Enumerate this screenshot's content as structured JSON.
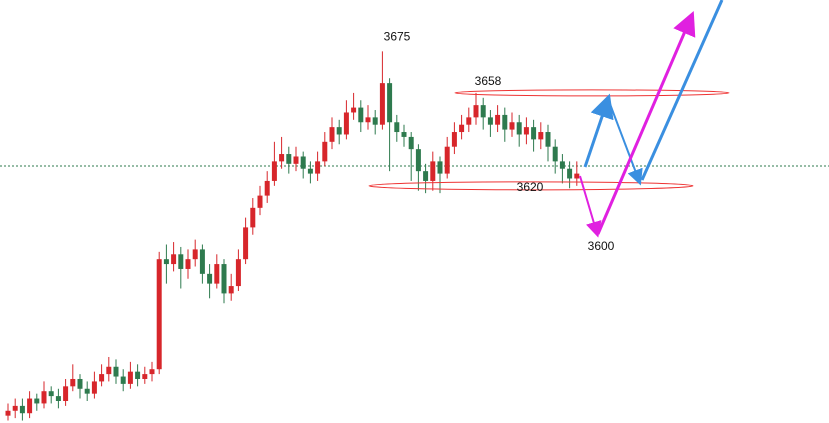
{
  "chart_data": {
    "type": "candlestick",
    "ohlc": [
      [
        3526,
        3531,
        3524,
        3528
      ],
      [
        3528,
        3533,
        3525,
        3530
      ],
      [
        3530,
        3533,
        3524,
        3527
      ],
      [
        3527,
        3536,
        3525,
        3533
      ],
      [
        3533,
        3535,
        3528,
        3531
      ],
      [
        3531,
        3540,
        3529,
        3536
      ],
      [
        3536,
        3538,
        3531,
        3534
      ],
      [
        3534,
        3537,
        3529,
        3532
      ],
      [
        3532,
        3541,
        3530,
        3538
      ],
      [
        3538,
        3547,
        3536,
        3541
      ],
      [
        3541,
        3543,
        3533,
        3537
      ],
      [
        3537,
        3540,
        3532,
        3535
      ],
      [
        3535,
        3544,
        3533,
        3540
      ],
      [
        3540,
        3547,
        3538,
        3543
      ],
      [
        3543,
        3550,
        3540,
        3546
      ],
      [
        3546,
        3549,
        3539,
        3542
      ],
      [
        3542,
        3545,
        3536,
        3539
      ],
      [
        3539,
        3548,
        3537,
        3544
      ],
      [
        3544,
        3547,
        3538,
        3541
      ],
      [
        3541,
        3546,
        3539,
        3543
      ],
      [
        3543,
        3548,
        3540,
        3545
      ],
      [
        3545,
        3593,
        3543,
        3590
      ],
      [
        3590,
        3596,
        3580,
        3588
      ],
      [
        3588,
        3597,
        3585,
        3592
      ],
      [
        3592,
        3595,
        3578,
        3586
      ],
      [
        3586,
        3594,
        3582,
        3590
      ],
      [
        3590,
        3598,
        3587,
        3594
      ],
      [
        3594,
        3596,
        3580,
        3584
      ],
      [
        3584,
        3588,
        3574,
        3580
      ],
      [
        3580,
        3592,
        3578,
        3588
      ],
      [
        3588,
        3590,
        3572,
        3576
      ],
      [
        3576,
        3584,
        3573,
        3579
      ],
      [
        3579,
        3594,
        3577,
        3590
      ],
      [
        3590,
        3607,
        3588,
        3603
      ],
      [
        3603,
        3615,
        3600,
        3611
      ],
      [
        3611,
        3620,
        3608,
        3616
      ],
      [
        3616,
        3626,
        3613,
        3622
      ],
      [
        3622,
        3638,
        3620,
        3630
      ],
      [
        3630,
        3640,
        3627,
        3633
      ],
      [
        3633,
        3636,
        3625,
        3629
      ],
      [
        3629,
        3636,
        3626,
        3632
      ],
      [
        3632,
        3634,
        3623,
        3627
      ],
      [
        3627,
        3630,
        3621,
        3625
      ],
      [
        3625,
        3634,
        3622,
        3630
      ],
      [
        3630,
        3642,
        3628,
        3638
      ],
      [
        3638,
        3648,
        3635,
        3644
      ],
      [
        3644,
        3647,
        3637,
        3641
      ],
      [
        3641,
        3655,
        3639,
        3650
      ],
      [
        3650,
        3658,
        3647,
        3652
      ],
      [
        3652,
        3655,
        3642,
        3646
      ],
      [
        3646,
        3653,
        3643,
        3648
      ],
      [
        3648,
        3651,
        3641,
        3645
      ],
      [
        3645,
        3675,
        3643,
        3662
      ],
      [
        3662,
        3664,
        3626,
        3646
      ],
      [
        3646,
        3649,
        3638,
        3642
      ],
      [
        3642,
        3645,
        3636,
        3640
      ],
      [
        3640,
        3642,
        3622,
        3635
      ],
      [
        3635,
        3637,
        3618,
        3626
      ],
      [
        3626,
        3629,
        3617,
        3622
      ],
      [
        3622,
        3634,
        3618,
        3630
      ],
      [
        3630,
        3632,
        3617,
        3625
      ],
      [
        3625,
        3640,
        3623,
        3636
      ],
      [
        3636,
        3646,
        3633,
        3642
      ],
      [
        3642,
        3649,
        3639,
        3645
      ],
      [
        3645,
        3652,
        3642,
        3648
      ],
      [
        3648,
        3658,
        3645,
        3653
      ],
      [
        3653,
        3656,
        3643,
        3648
      ],
      [
        3648,
        3651,
        3640,
        3645
      ],
      [
        3645,
        3653,
        3642,
        3649
      ],
      [
        3649,
        3652,
        3638,
        3643
      ],
      [
        3643,
        3650,
        3640,
        3646
      ],
      [
        3646,
        3649,
        3636,
        3641
      ],
      [
        3641,
        3648,
        3637,
        3644
      ],
      [
        3644,
        3647,
        3634,
        3639
      ],
      [
        3639,
        3646,
        3635,
        3642
      ],
      [
        3642,
        3645,
        3630,
        3636
      ],
      [
        3636,
        3639,
        3625,
        3630
      ],
      [
        3630,
        3633,
        3621,
        3627
      ],
      [
        3627,
        3630,
        3619,
        3623
      ],
      [
        3623,
        3630,
        3620,
        3625
      ]
    ],
    "up_color": "#d7262b",
    "down_color": "#2e7a4e",
    "ylim": [
      3523,
      3696
    ],
    "levels": [
      3675,
      3658,
      3620,
      3600
    ]
  }
}
